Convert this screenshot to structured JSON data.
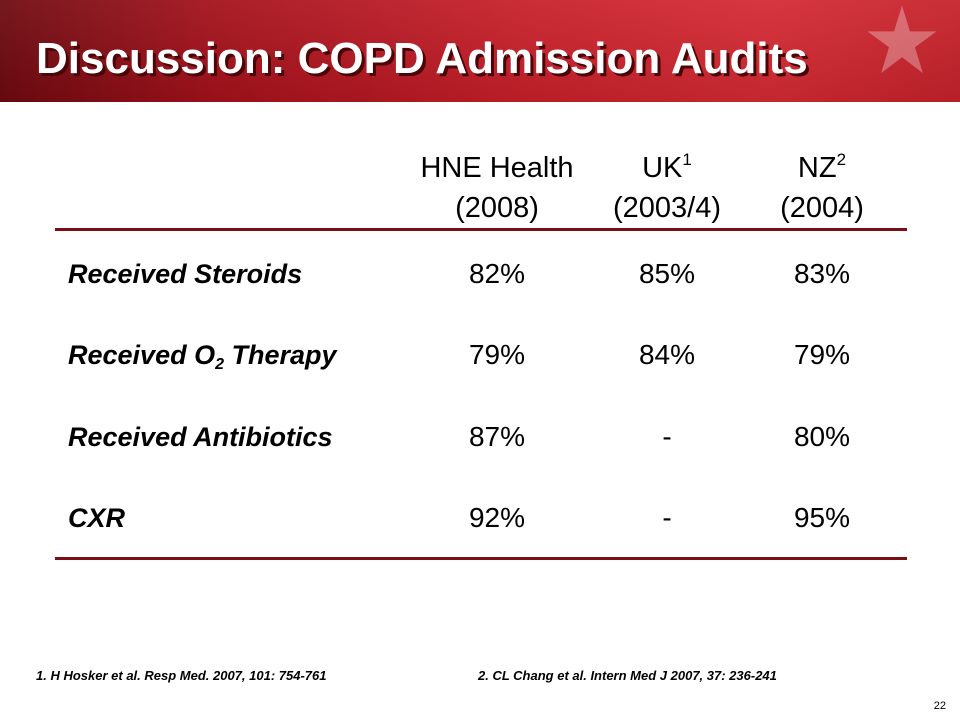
{
  "slide": {
    "title": "Discussion: COPD Admission Audits",
    "page_number": "22",
    "colors": {
      "banner": "#c8202a",
      "banner_dark": "#6e0a10",
      "rule": "#7a0e14",
      "text": "#000000"
    }
  },
  "table": {
    "headers": [
      {
        "name": "HNE Health",
        "sup": "",
        "year": "(2008)"
      },
      {
        "name": "UK",
        "sup": "1",
        "year": "(2003/4)"
      },
      {
        "name": "NZ",
        "sup": "2",
        "year": "(2004)"
      }
    ],
    "rows": [
      {
        "label": "Received Steroids",
        "values": [
          "82%",
          "85%",
          "83%"
        ]
      },
      {
        "label_pre": "Received O",
        "label_sub": "2",
        "label_post": " Therapy",
        "values": [
          "79%",
          "84%",
          "79%"
        ]
      },
      {
        "label": "Received Antibiotics",
        "values": [
          "87%",
          "-",
          "80%"
        ]
      },
      {
        "label": "CXR",
        "values": [
          "92%",
          "-",
          "95%"
        ]
      }
    ]
  },
  "references": [
    "1. H Hosker et al. Resp Med. 2007, 101: 754-761",
    "2. CL Chang et al. Intern Med J 2007, 37: 236-241"
  ]
}
